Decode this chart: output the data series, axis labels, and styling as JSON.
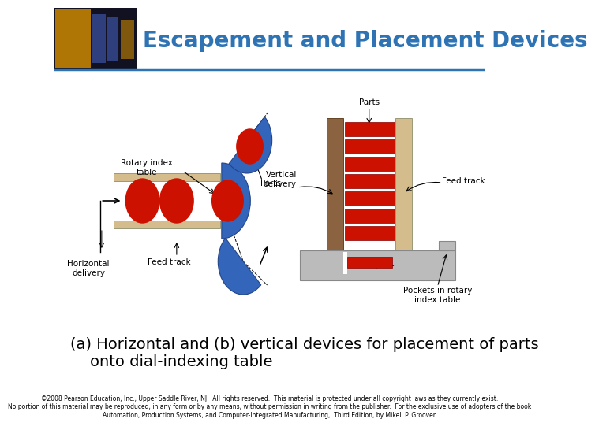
{
  "title": "Escapement and Placement Devices",
  "title_color": "#2E74B5",
  "caption_line1": "(a) Horizontal and (b) vertical devices for placement of parts",
  "caption_line2": "    onto dial-indexing table",
  "copyright_text": "©2008 Pearson Education, Inc., Upper Saddle River, NJ.  All rights reserved.  This material is protected under all copyright laws as they currently exist.\nNo portion of this material may be reproduced, in any form or by any means, without permission in writing from the publisher.  For the exclusive use of adopters of the book\nAutomation, Production Systems, and Computer-Integrated Manufacturing,  Third Edition, by Mikell P. Groover.",
  "bg_color": "#ffffff",
  "header_line_color": "#2E74B5",
  "track_color": "#D4BC8C",
  "red_part_color": "#CC1100",
  "blue_part_color": "#3366BB",
  "brown_track_color": "#8B6340",
  "tan_track_color": "#D4BC8C",
  "gray_base_color": "#BBBBBB",
  "label_font_size": 7.5,
  "caption_font_size": 14,
  "copyright_font_size": 5.5
}
